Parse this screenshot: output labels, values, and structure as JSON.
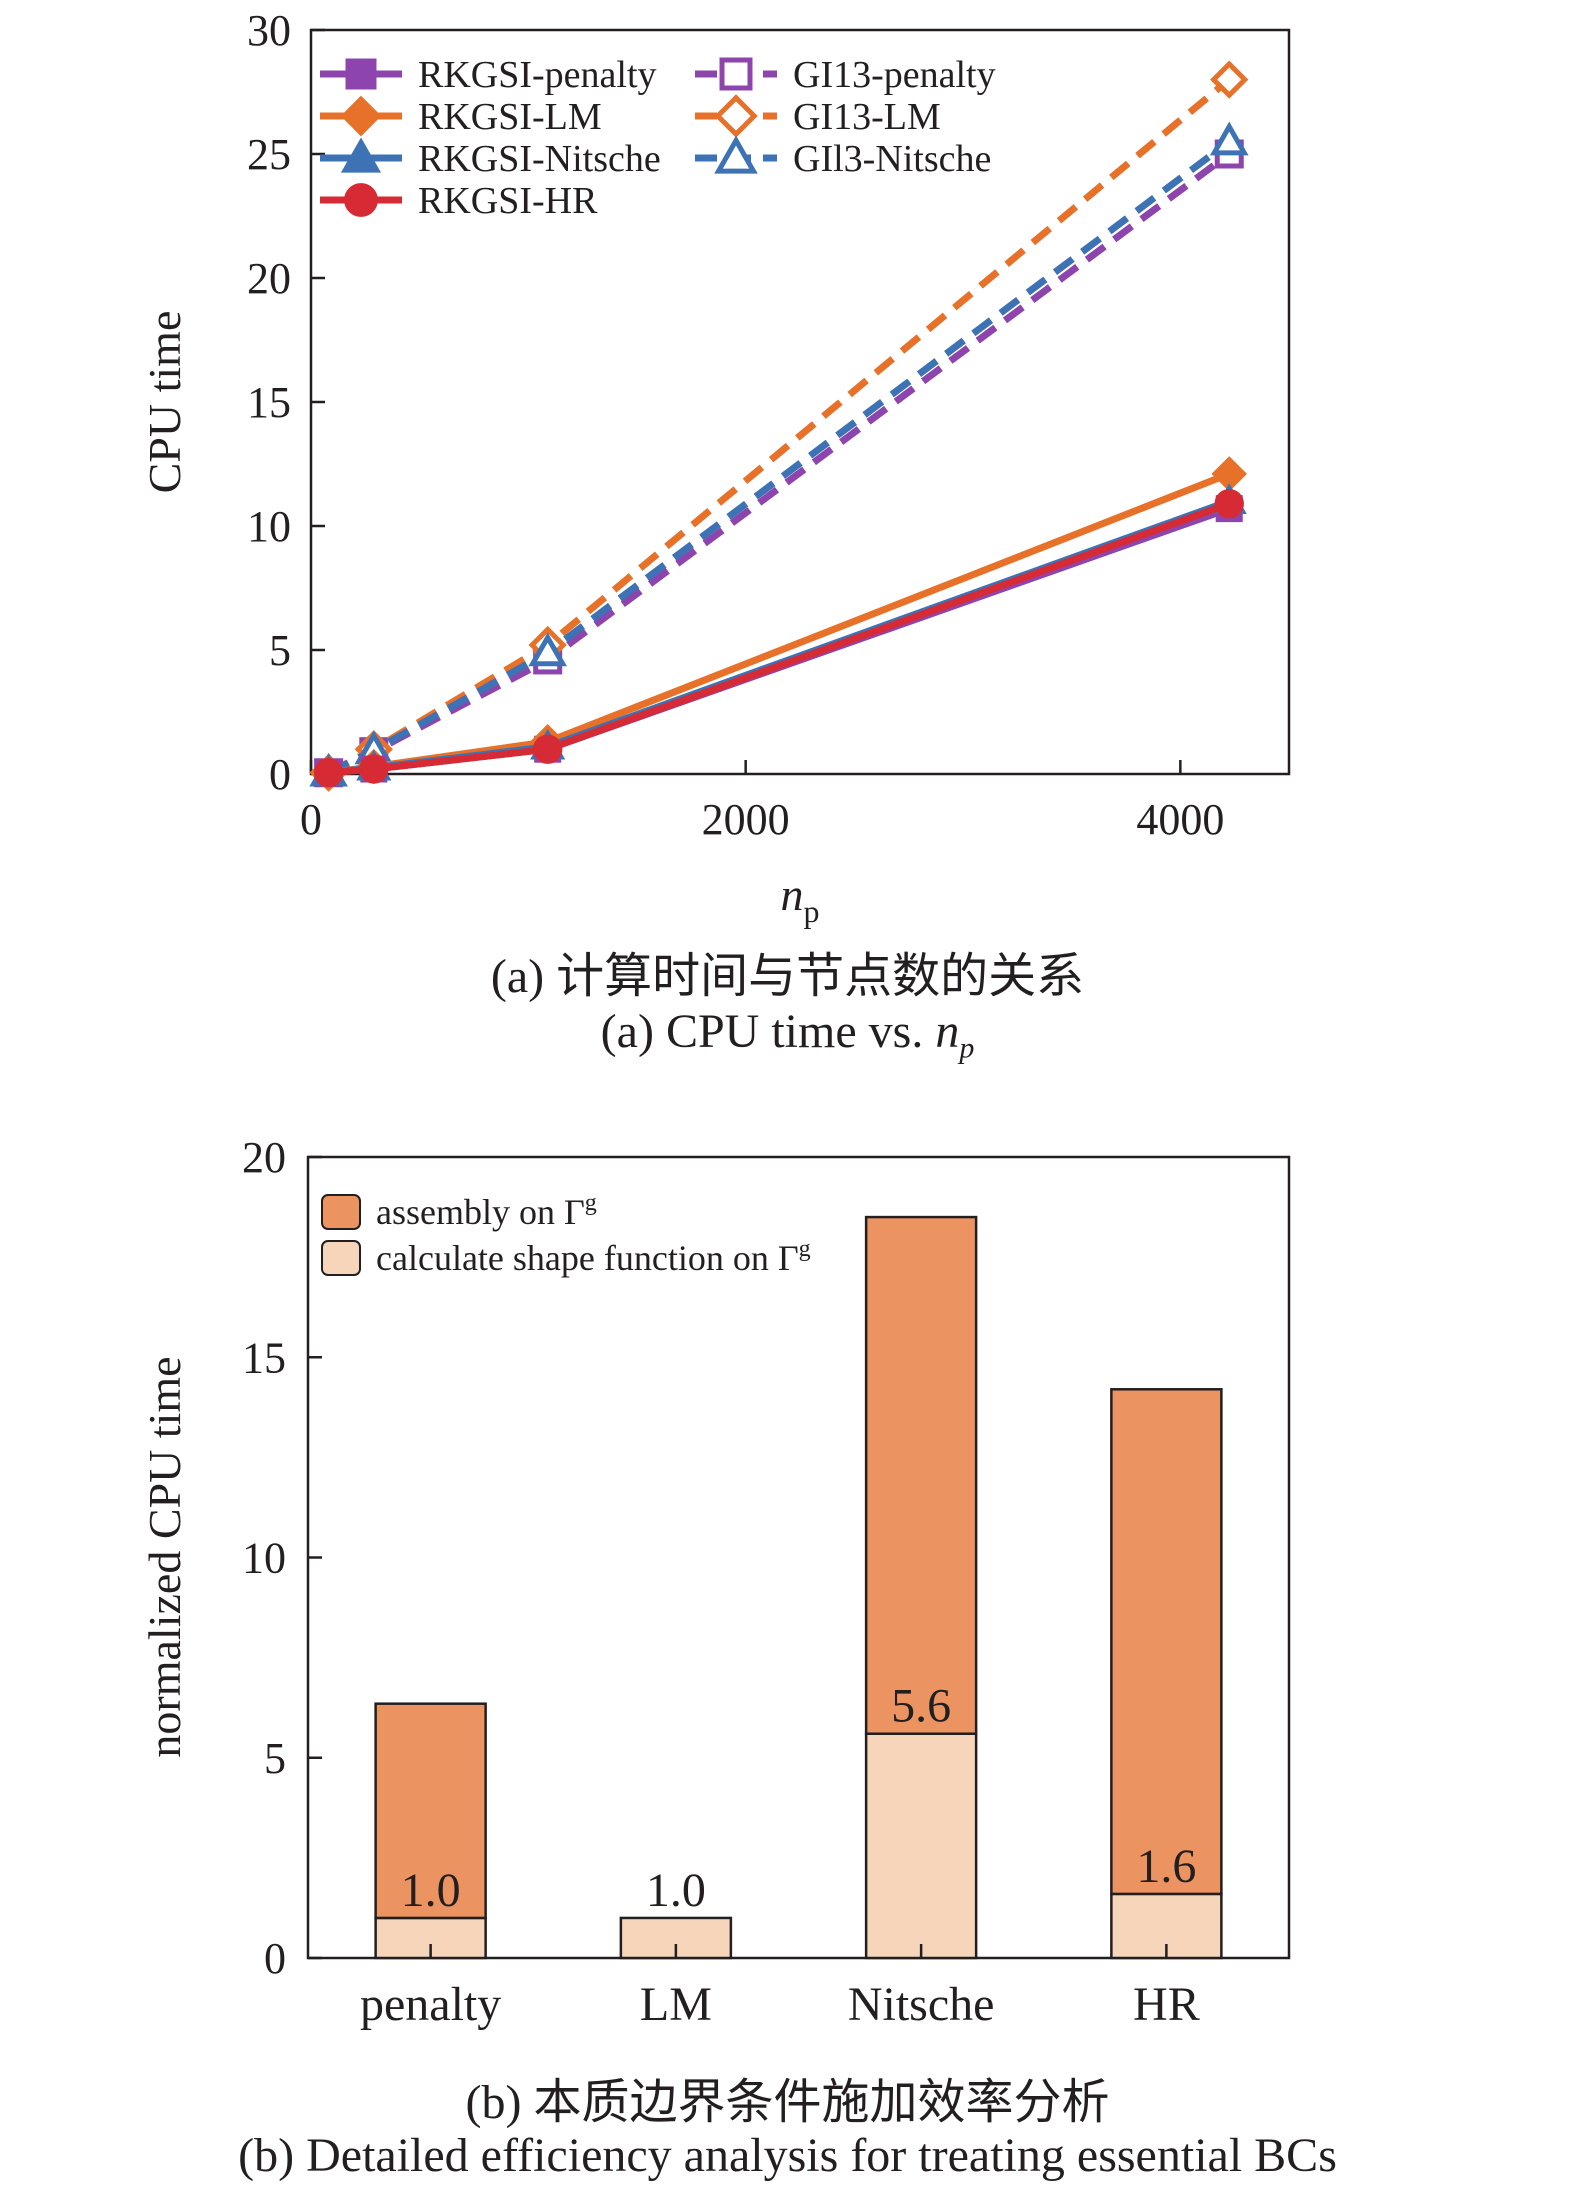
{
  "colors": {
    "penalty": "#8e44ad",
    "lm": "#e8712a",
    "nitsche": "#3d72b4",
    "hr": "#d62b34",
    "assembly": "#ec9461",
    "shape": "#f6d5bb",
    "axis": "#231f20"
  },
  "chart_data": [
    {
      "type": "line",
      "ylabel": "CPU time",
      "xlabel_main": "n",
      "xlabel_sub": "p",
      "xlim": [
        0,
        4500
      ],
      "ylim": [
        0,
        30
      ],
      "xticks": [
        0,
        2000,
        4000
      ],
      "yticks": [
        0,
        5,
        10,
        15,
        20,
        25,
        30
      ],
      "legend_position": "top-left",
      "series": [
        {
          "name": "RKGSI-penalty",
          "x": [
            81,
            289,
            1089,
            4225
          ],
          "y": [
            0.05,
            0.2,
            1.0,
            10.7
          ],
          "style": "solid",
          "marker": "square",
          "filled": true,
          "color_key": "penalty"
        },
        {
          "name": "RKGSI-LM",
          "x": [
            81,
            289,
            1089,
            4225
          ],
          "y": [
            0.05,
            0.3,
            1.3,
            12.1
          ],
          "style": "solid",
          "marker": "diamond",
          "filled": true,
          "color_key": "lm"
        },
        {
          "name": "RKGSI-Nitsche",
          "x": [
            81,
            289,
            1089,
            4225
          ],
          "y": [
            0.05,
            0.25,
            1.1,
            11.0
          ],
          "style": "solid",
          "marker": "triangle",
          "filled": true,
          "color_key": "nitsche"
        },
        {
          "name": "RKGSI-HR",
          "x": [
            81,
            289,
            1089,
            4225
          ],
          "y": [
            0.05,
            0.2,
            1.0,
            10.9
          ],
          "style": "solid",
          "marker": "circle",
          "filled": true,
          "color_key": "hr"
        },
        {
          "name": "GI13-penalty",
          "x": [
            81,
            289,
            1089,
            4225
          ],
          "y": [
            0.05,
            0.9,
            4.6,
            25.0
          ],
          "style": "dashed",
          "marker": "square",
          "filled": false,
          "color_key": "penalty"
        },
        {
          "name": "GI13-LM",
          "x": [
            81,
            289,
            1089,
            4225
          ],
          "y": [
            0.05,
            1.0,
            5.2,
            28.0
          ],
          "style": "dashed",
          "marker": "diamond",
          "filled": false,
          "color_key": "lm"
        },
        {
          "name": "GIl3-Nitsche",
          "x": [
            81,
            289,
            1089,
            4225
          ],
          "y": [
            0.05,
            0.95,
            4.9,
            25.5
          ],
          "style": "dashed",
          "marker": "triangle",
          "filled": false,
          "color_key": "nitsche"
        }
      ],
      "caption_cn": "(a) 计算时间与节点数的关系",
      "caption_en_main": "(a) CPU time vs. ",
      "caption_en_var": "n",
      "caption_en_sub": "p"
    },
    {
      "type": "bar",
      "stacked": true,
      "ylabel": "normalized CPU time",
      "ylim": [
        0,
        20
      ],
      "yticks": [
        0,
        5,
        10,
        15,
        20
      ],
      "legend_position": "top-left",
      "categories": [
        "penalty",
        "LM",
        "Nitsche",
        "HR"
      ],
      "series": [
        {
          "name": "calculate shape function on Γ",
          "name_sup": "g",
          "values": [
            1.0,
            1.0,
            5.6,
            1.6
          ],
          "color_key": "shape"
        },
        {
          "name": "assembly on Γ",
          "name_sup": "g",
          "values": [
            5.35,
            0.0,
            12.9,
            12.6
          ],
          "color_key": "assembly"
        }
      ],
      "data_labels": [
        "1.0",
        "1.0",
        "5.6",
        "1.6"
      ],
      "caption_cn": "(b) 本质边界条件施加效率分析",
      "caption_en": "(b) Detailed efficiency analysis for treating essential BCs"
    }
  ]
}
